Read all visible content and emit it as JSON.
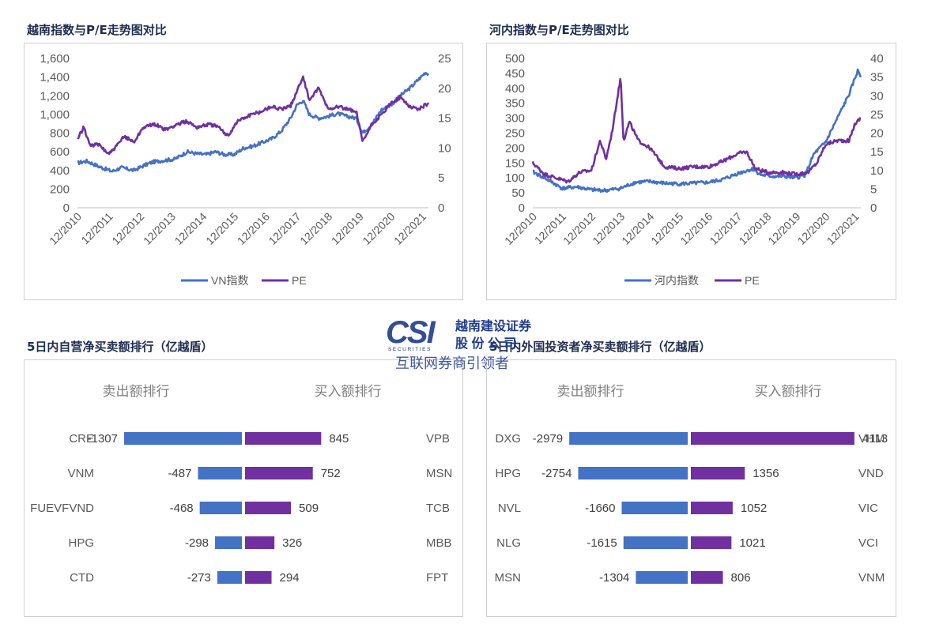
{
  "charts": {
    "vn": {
      "title": "越南指数与P/E走势图对比",
      "left_ticks": [
        "0",
        "200",
        "400",
        "600",
        "800",
        "1,000",
        "1,200",
        "1,400",
        "1,600"
      ],
      "right_ticks": [
        "0",
        "5",
        "10",
        "15",
        "20",
        "25"
      ],
      "x_ticks": [
        "12/2010",
        "12/2011",
        "12/2012",
        "12/2013",
        "12/2014",
        "12/2015",
        "12/2016",
        "12/2017",
        "12/2018",
        "12/2019",
        "12/2020",
        "12/2021"
      ],
      "legend": [
        "VN指数",
        "PE"
      ]
    },
    "hn": {
      "title": "河内指数与P/E走势图对比",
      "left_ticks": [
        "0",
        "50",
        "100",
        "150",
        "200",
        "250",
        "300",
        "350",
        "400",
        "450",
        "500"
      ],
      "right_ticks": [
        "0",
        "5",
        "10",
        "15",
        "20",
        "25",
        "30",
        "35",
        "40"
      ],
      "x_ticks": [
        "12/2010",
        "12/2011",
        "12/2012",
        "12/2013",
        "12/2014",
        "12/2015",
        "12/2016",
        "12/2017",
        "12/2018",
        "12/2019",
        "12/2020",
        "12/2021"
      ],
      "legend": [
        "河内指数",
        "PE"
      ]
    },
    "self": {
      "title": "5日内自营净买卖额排行（亿越盾）",
      "sell_header": "卖出额排行",
      "buy_header": "买入额排行",
      "sell_names": [
        "CRE",
        "VNM",
        "FUEVFVND",
        "HPG",
        "CTD"
      ],
      "sell_values": [
        -1307,
        -487,
        -468,
        -298,
        -273
      ],
      "buy_names": [
        "VPB",
        "MSN",
        "TCB",
        "MBB",
        "FPT"
      ],
      "buy_values": [
        845,
        752,
        509,
        326,
        294
      ]
    },
    "foreign": {
      "title": "5日内外国投资者净买卖额排行（亿越盾）",
      "sell_header": "卖出额排行",
      "buy_header": "买入额排行",
      "sell_names": [
        "DXG",
        "HPG",
        "NVL",
        "NLG",
        "MSN"
      ],
      "sell_values": [
        -2979,
        -2754,
        -1660,
        -1615,
        -1304
      ],
      "buy_names": [
        "VHM",
        "VND",
        "VIC",
        "VCI",
        "VNM"
      ],
      "buy_values": [
        4113,
        1356,
        1052,
        1021,
        806
      ]
    }
  },
  "watermark": {
    "logo": "CSI",
    "logo_sub": "SECURITIES",
    "company_line1": "越南建设证券",
    "company_line2": "股 份 公 司",
    "slogan": "互联网券商引领者"
  },
  "colors": {
    "index_line": "#4472C4",
    "pe_line": "#7030A0",
    "sell_bar": "#4472C4",
    "buy_bar": "#7030A0",
    "title_text": "#1f2d50",
    "watermark_blue": "#1f3a8c"
  },
  "chart_data": [
    {
      "type": "line",
      "title": "越南指数与P/E走势图对比",
      "x": [
        "12/2010",
        "12/2011",
        "12/2012",
        "12/2013",
        "12/2014",
        "12/2015",
        "12/2016",
        "12/2017",
        "12/2018",
        "12/2019",
        "12/2020",
        "12/2021"
      ],
      "series": [
        {
          "name": "VN指数",
          "axis": "left",
          "values": [
            [
              0,
              480
            ],
            [
              0.3,
              500
            ],
            [
              0.7,
              440
            ],
            [
              1.1,
              390
            ],
            [
              1.4,
              430
            ],
            [
              1.8,
              400
            ],
            [
              2.1,
              450
            ],
            [
              2.4,
              490
            ],
            [
              2.8,
              510
            ],
            [
              3.1,
              520
            ],
            [
              3.5,
              600
            ],
            [
              3.8,
              580
            ],
            [
              4.1,
              570
            ],
            [
              4.4,
              600
            ],
            [
              4.7,
              570
            ],
            [
              5.0,
              570
            ],
            [
              5.3,
              640
            ],
            [
              5.6,
              660
            ],
            [
              5.9,
              700
            ],
            [
              6.2,
              740
            ],
            [
              6.5,
              820
            ],
            [
              6.8,
              960
            ],
            [
              7.0,
              1100
            ],
            [
              7.2,
              1150
            ],
            [
              7.4,
              1000
            ],
            [
              7.7,
              960
            ],
            [
              8.0,
              980
            ],
            [
              8.3,
              1010
            ],
            [
              8.6,
              980
            ],
            [
              8.9,
              960
            ],
            [
              9.1,
              800
            ],
            [
              9.4,
              900
            ],
            [
              9.7,
              1050
            ],
            [
              10.0,
              1100
            ],
            [
              10.3,
              1200
            ],
            [
              10.6,
              1280
            ],
            [
              10.9,
              1380
            ],
            [
              11.1,
              1450
            ],
            [
              11.2,
              1440
            ]
          ]
        },
        {
          "name": "PE",
          "axis": "right",
          "values": [
            [
              0,
              11.5
            ],
            [
              0.2,
              13.5
            ],
            [
              0.4,
              10.5
            ],
            [
              0.7,
              10.5
            ],
            [
              1.0,
              9.0
            ],
            [
              1.2,
              10.0
            ],
            [
              1.5,
              12.0
            ],
            [
              1.8,
              11.0
            ],
            [
              2.1,
              13.5
            ],
            [
              2.5,
              14.0
            ],
            [
              2.8,
              13.0
            ],
            [
              3.2,
              14.0
            ],
            [
              3.5,
              14.5
            ],
            [
              3.8,
              13.5
            ],
            [
              4.2,
              14.0
            ],
            [
              4.5,
              13.5
            ],
            [
              4.8,
              12.0
            ],
            [
              5.1,
              14.5
            ],
            [
              5.5,
              15.5
            ],
            [
              5.8,
              16.0
            ],
            [
              6.2,
              17.0
            ],
            [
              6.5,
              16.5
            ],
            [
              6.8,
              17.0
            ],
            [
              7.0,
              19.5
            ],
            [
              7.2,
              22.0
            ],
            [
              7.4,
              18.0
            ],
            [
              7.7,
              20.0
            ],
            [
              8.0,
              16.5
            ],
            [
              8.3,
              17.0
            ],
            [
              8.6,
              16.5
            ],
            [
              8.9,
              16.0
            ],
            [
              9.1,
              11.0
            ],
            [
              9.4,
              14.0
            ],
            [
              9.7,
              15.5
            ],
            [
              10.0,
              17.5
            ],
            [
              10.3,
              18.5
            ],
            [
              10.6,
              17.0
            ],
            [
              10.9,
              16.5
            ],
            [
              11.2,
              17.5
            ]
          ]
        }
      ],
      "ylim_left": [
        0,
        1600
      ],
      "ylim_right": [
        0,
        25
      ],
      "legend": "bottom"
    },
    {
      "type": "line",
      "title": "河内指数与P/E走势图对比",
      "x": [
        "12/2010",
        "12/2011",
        "12/2012",
        "12/2013",
        "12/2014",
        "12/2015",
        "12/2016",
        "12/2017",
        "12/2018",
        "12/2019",
        "12/2020",
        "12/2021"
      ],
      "series": [
        {
          "name": "河内指数",
          "axis": "left",
          "values": [
            [
              0,
              120
            ],
            [
              0.5,
              95
            ],
            [
              1.0,
              65
            ],
            [
              1.5,
              70
            ],
            [
              2.0,
              60
            ],
            [
              2.5,
              58
            ],
            [
              3.0,
              65
            ],
            [
              3.5,
              85
            ],
            [
              4.0,
              88
            ],
            [
              4.5,
              82
            ],
            [
              5.0,
              80
            ],
            [
              5.5,
              82
            ],
            [
              6.0,
              85
            ],
            [
              6.5,
              95
            ],
            [
              7.0,
              115
            ],
            [
              7.5,
              130
            ],
            [
              7.8,
              110
            ],
            [
              8.2,
              105
            ],
            [
              8.6,
              105
            ],
            [
              9.0,
              100
            ],
            [
              9.3,
              110
            ],
            [
              9.6,
              180
            ],
            [
              10.0,
              220
            ],
            [
              10.4,
              300
            ],
            [
              10.8,
              380
            ],
            [
              11.1,
              460
            ],
            [
              11.2,
              440
            ]
          ]
        },
        {
          "name": "PE",
          "axis": "right",
          "values": [
            [
              0,
              12.0
            ],
            [
              0.4,
              9.0
            ],
            [
              0.8,
              8.0
            ],
            [
              1.2,
              7.0
            ],
            [
              1.6,
              9.5
            ],
            [
              2.0,
              10.0
            ],
            [
              2.3,
              18.0
            ],
            [
              2.5,
              13.0
            ],
            [
              2.7,
              20.0
            ],
            [
              2.9,
              30.0
            ],
            [
              3.0,
              35.0
            ],
            [
              3.1,
              18.0
            ],
            [
              3.3,
              23.0
            ],
            [
              3.6,
              18.0
            ],
            [
              4.0,
              16.0
            ],
            [
              4.5,
              11.0
            ],
            [
              5.0,
              10.5
            ],
            [
              5.5,
              11.0
            ],
            [
              6.0,
              11.0
            ],
            [
              6.5,
              12.5
            ],
            [
              7.0,
              14.5
            ],
            [
              7.3,
              15.0
            ],
            [
              7.6,
              10.5
            ],
            [
              8.0,
              9.5
            ],
            [
              8.5,
              9.5
            ],
            [
              9.0,
              9.0
            ],
            [
              9.4,
              9.5
            ],
            [
              9.7,
              12.0
            ],
            [
              10.0,
              17.0
            ],
            [
              10.4,
              18.0
            ],
            [
              10.8,
              18.0
            ],
            [
              11.0,
              22.5
            ],
            [
              11.2,
              24.0
            ]
          ]
        }
      ],
      "ylim_left": [
        0,
        500
      ],
      "ylim_right": [
        0,
        40
      ],
      "legend": "bottom"
    },
    {
      "type": "bar",
      "title": "5日内自营净买卖额排行（亿越盾）",
      "series": [
        {
          "name": "卖出额排行",
          "categories": [
            "CRE",
            "VNM",
            "FUEVFVND",
            "HPG",
            "CTD"
          ],
          "values": [
            -1307,
            -487,
            -468,
            -298,
            -273
          ]
        },
        {
          "name": "买入额排行",
          "categories": [
            "VPB",
            "MSN",
            "TCB",
            "MBB",
            "FPT"
          ],
          "values": [
            845,
            752,
            509,
            326,
            294
          ]
        }
      ]
    },
    {
      "type": "bar",
      "title": "5日内外国投资者净买卖额排行（亿越盾）",
      "series": [
        {
          "name": "卖出额排行",
          "categories": [
            "DXG",
            "HPG",
            "NVL",
            "NLG",
            "MSN"
          ],
          "values": [
            -2979,
            -2754,
            -1660,
            -1615,
            -1304
          ]
        },
        {
          "name": "买入额排行",
          "categories": [
            "VHM",
            "VND",
            "VIC",
            "VCI",
            "VNM"
          ],
          "values": [
            4113,
            1356,
            1052,
            1021,
            806
          ]
        }
      ]
    }
  ]
}
